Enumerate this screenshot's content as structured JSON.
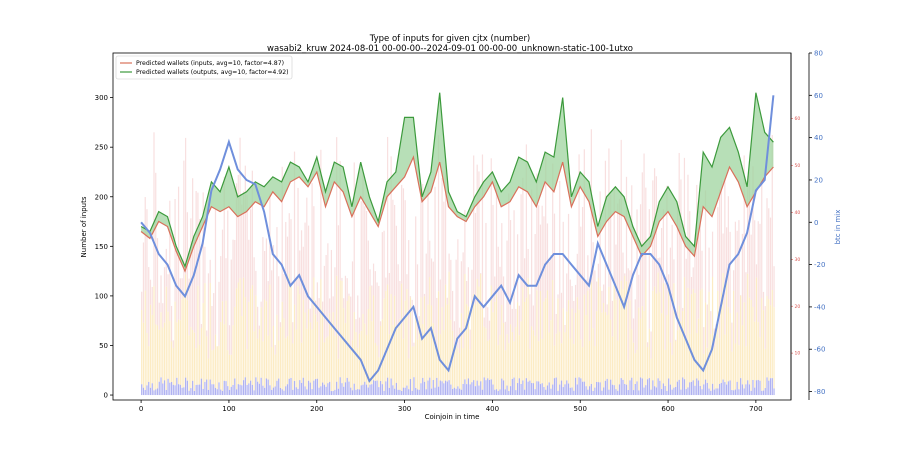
{
  "chart_data": {
    "type": "line",
    "title": "Type of inputs for given cjtx (number)",
    "subtitle": "wasabi2_kruw 2024-08-01 00-00-00--2024-09-01 00-00-00_unknown-static-100-1utxo",
    "xlabel": "Coinjoin in time",
    "ylabel": "Number of inputs",
    "y2label": "btc in mix",
    "xlim": [
      -32,
      740
    ],
    "ylim": [
      -5,
      345
    ],
    "y_right_inner_lim": [
      0,
      74
    ],
    "y_right_outer_lim": [
      -84,
      80
    ],
    "x_ticks": [
      0,
      100,
      200,
      300,
      400,
      500,
      600,
      700
    ],
    "y_ticks": [
      0,
      50,
      100,
      150,
      200,
      250,
      300
    ],
    "y_right_inner_ticks": [
      10,
      20,
      30,
      40,
      50,
      60
    ],
    "y_right_outer_ticks": [
      -80,
      -60,
      -40,
      -20,
      0,
      20,
      40,
      60,
      80
    ],
    "legend_position": "top-left",
    "grid": false,
    "colors": {
      "inputs": "#d9705a",
      "outputs": "#3c9a3c",
      "fill": "#9fd49f",
      "btc": "#6f8fdc",
      "bars_pink": "#f2c4c4",
      "bars_yellow": "#fbe6b4",
      "bars_blue": "#a6a9f0"
    },
    "series": [
      {
        "name": "Predicted wallets (inputs, avg=10, factor=4.87)",
        "axis": "left",
        "x": [
          0,
          10,
          20,
          30,
          40,
          50,
          60,
          70,
          80,
          90,
          100,
          110,
          120,
          130,
          140,
          150,
          160,
          170,
          180,
          190,
          200,
          210,
          220,
          230,
          240,
          250,
          260,
          270,
          280,
          290,
          300,
          310,
          320,
          330,
          340,
          350,
          360,
          370,
          380,
          390,
          400,
          410,
          420,
          430,
          440,
          450,
          460,
          470,
          480,
          490,
          500,
          510,
          520,
          530,
          540,
          550,
          560,
          570,
          580,
          590,
          600,
          610,
          620,
          630,
          640,
          650,
          660,
          670,
          680,
          690,
          700,
          710,
          720
        ],
        "values": [
          165,
          158,
          175,
          170,
          145,
          125,
          150,
          170,
          190,
          185,
          190,
          180,
          185,
          195,
          190,
          205,
          195,
          215,
          220,
          210,
          225,
          190,
          215,
          205,
          180,
          200,
          185,
          170,
          200,
          210,
          220,
          240,
          195,
          205,
          235,
          190,
          180,
          175,
          190,
          200,
          215,
          190,
          195,
          210,
          205,
          190,
          215,
          205,
          235,
          190,
          210,
          195,
          160,
          175,
          185,
          180,
          160,
          140,
          150,
          175,
          185,
          170,
          150,
          140,
          190,
          180,
          205,
          230,
          215,
          190,
          205,
          220,
          230
        ]
      },
      {
        "name": "Predicted wallets (outputs, avg=10, factor=4.92)",
        "axis": "left",
        "x": [
          0,
          10,
          20,
          30,
          40,
          50,
          60,
          70,
          80,
          90,
          100,
          110,
          120,
          130,
          140,
          150,
          160,
          170,
          180,
          190,
          200,
          210,
          220,
          230,
          240,
          250,
          260,
          270,
          280,
          290,
          300,
          310,
          320,
          330,
          340,
          350,
          360,
          370,
          380,
          390,
          400,
          410,
          420,
          430,
          440,
          450,
          460,
          470,
          480,
          490,
          500,
          510,
          520,
          530,
          540,
          550,
          560,
          570,
          580,
          590,
          600,
          610,
          620,
          630,
          640,
          650,
          660,
          670,
          680,
          690,
          700,
          710,
          720
        ],
        "values": [
          170,
          165,
          185,
          180,
          150,
          130,
          160,
          180,
          215,
          205,
          230,
          200,
          205,
          215,
          210,
          220,
          215,
          235,
          230,
          215,
          240,
          205,
          235,
          230,
          190,
          235,
          200,
          175,
          215,
          225,
          280,
          280,
          200,
          225,
          305,
          205,
          185,
          180,
          200,
          215,
          225,
          205,
          215,
          240,
          235,
          215,
          245,
          240,
          300,
          200,
          225,
          215,
          170,
          200,
          210,
          200,
          170,
          150,
          160,
          195,
          210,
          195,
          160,
          150,
          245,
          230,
          260,
          270,
          245,
          210,
          305,
          265,
          255
        ]
      },
      {
        "name": "btc in mix",
        "axis": "right",
        "x": [
          0,
          10,
          20,
          30,
          40,
          50,
          60,
          70,
          80,
          90,
          100,
          110,
          120,
          130,
          140,
          150,
          160,
          170,
          180,
          190,
          200,
          210,
          220,
          230,
          240,
          250,
          260,
          270,
          280,
          290,
          300,
          310,
          320,
          330,
          340,
          350,
          360,
          370,
          380,
          390,
          400,
          410,
          420,
          430,
          440,
          450,
          460,
          470,
          480,
          490,
          500,
          510,
          520,
          530,
          540,
          550,
          560,
          570,
          580,
          590,
          600,
          610,
          620,
          630,
          640,
          650,
          660,
          670,
          680,
          690,
          700,
          710,
          720
        ],
        "values": [
          0,
          -5,
          -15,
          -20,
          -30,
          -35,
          -25,
          -10,
          15,
          25,
          38,
          25,
          20,
          18,
          5,
          -15,
          -20,
          -30,
          -25,
          -35,
          -40,
          -45,
          -50,
          -55,
          -60,
          -65,
          -75,
          -70,
          -60,
          -50,
          -45,
          -40,
          -55,
          -50,
          -65,
          -70,
          -55,
          -50,
          -35,
          -40,
          -35,
          -30,
          -38,
          -25,
          -30,
          -30,
          -20,
          -15,
          -15,
          -20,
          -25,
          -30,
          -10,
          -20,
          -30,
          -40,
          -25,
          -15,
          -15,
          -20,
          -30,
          -45,
          -55,
          -65,
          -70,
          -60,
          -40,
          -20,
          -15,
          -5,
          15,
          20,
          60
        ]
      }
    ]
  }
}
